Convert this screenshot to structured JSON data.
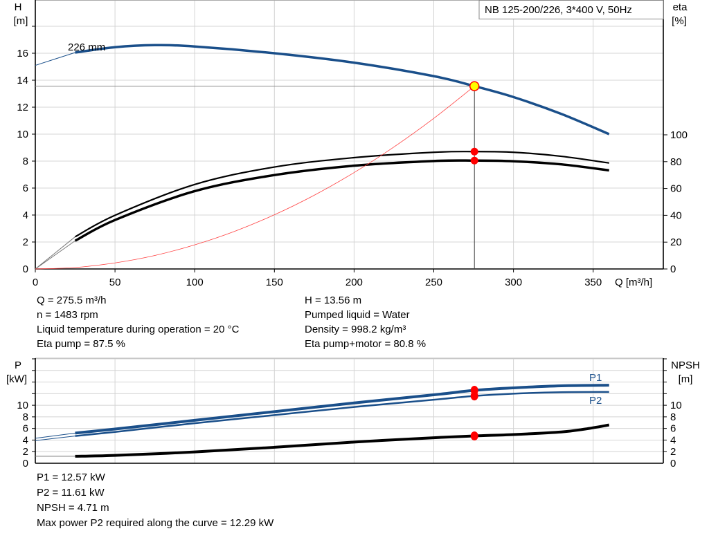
{
  "chart_data": [
    {
      "type": "line",
      "title": "NB 125-200/226, 3*400 V, 50Hz",
      "xlabel": "Q [m³/h]",
      "ylabel": "H\n[m]",
      "ylabel_lines": [
        "H",
        "[m]"
      ],
      "y2label_lines": [
        "eta",
        "[%]"
      ],
      "xlim": [
        0,
        394
      ],
      "ylim": [
        0,
        18
      ],
      "y2lim": [
        0,
        100
      ],
      "grid": true,
      "x_ticks": [
        0,
        50,
        100,
        150,
        200,
        250,
        300,
        350
      ],
      "y_ticks": [
        0,
        2,
        4,
        6,
        8,
        10,
        12,
        14,
        16
      ],
      "y2_ticks": [
        0,
        20,
        40,
        60,
        80,
        100
      ],
      "curve_label": "226 mm",
      "series": [
        {
          "key": "H",
          "axis": "left",
          "color": "#1a4f8a",
          "start_thick": 25,
          "points": [
            [
              0,
              15.1
            ],
            [
              25,
              16.05
            ],
            [
              50,
              16.45
            ],
            [
              75,
              16.6
            ],
            [
              100,
              16.5
            ],
            [
              150,
              16.0
            ],
            [
              200,
              15.3
            ],
            [
              250,
              14.3
            ],
            [
              275.5,
              13.56
            ],
            [
              300,
              12.75
            ],
            [
              330,
              11.5
            ],
            [
              360,
              10.0
            ]
          ]
        },
        {
          "key": "eta_pump",
          "axis": "right",
          "color": "#000000",
          "start_thick": 25,
          "points": [
            [
              0,
              0
            ],
            [
              25,
              24
            ],
            [
              50,
              40
            ],
            [
              100,
              63
            ],
            [
              150,
              76
            ],
            [
              200,
              83
            ],
            [
              250,
              87
            ],
            [
              275.5,
              87.5
            ],
            [
              300,
              87
            ],
            [
              330,
              84
            ],
            [
              360,
              79
            ]
          ]
        },
        {
          "key": "eta_pump_motor",
          "axis": "right",
          "color": "#000000",
          "start_thick": 25,
          "points": [
            [
              0,
              0
            ],
            [
              25,
              21
            ],
            [
              50,
              36.5
            ],
            [
              100,
              58
            ],
            [
              150,
              70
            ],
            [
              200,
              77
            ],
            [
              250,
              80.5
            ],
            [
              275.5,
              80.8
            ],
            [
              300,
              80.3
            ],
            [
              330,
              78
            ],
            [
              360,
              73.5
            ]
          ]
        },
        {
          "key": "system_curve",
          "axis": "left",
          "color": "#ff4040",
          "points": [
            [
              0,
              0
            ],
            [
              25,
              0.11
            ],
            [
              50,
              0.45
            ],
            [
              75,
              1.0
            ],
            [
              100,
              1.79
            ],
            [
              125,
              2.79
            ],
            [
              150,
              4.02
            ],
            [
              175,
              5.47
            ],
            [
              200,
              7.15
            ],
            [
              225,
              9.05
            ],
            [
              250,
              11.17
            ],
            [
              275.5,
              13.56
            ]
          ]
        }
      ],
      "duty_point": {
        "Q": 275.5,
        "H": 13.56,
        "eta_pump": 87.5,
        "eta_pump_motor": 80.8
      }
    },
    {
      "type": "line",
      "ylabel_lines": [
        "P",
        "[kW]"
      ],
      "y2label_lines": [
        "NPSH",
        "[m]"
      ],
      "xlim": [
        0,
        394
      ],
      "ylim": [
        0,
        18
      ],
      "grid": true,
      "y_ticks": [
        0,
        2,
        4,
        6,
        8,
        10
      ],
      "y2_ticks": [
        0,
        2,
        4,
        6,
        8,
        10
      ],
      "series": [
        {
          "name": "P1",
          "key": "P1",
          "color": "#1a4f8a",
          "start_thick": 25,
          "points": [
            [
              0,
              4.3
            ],
            [
              25,
              5.2
            ],
            [
              50,
              5.9
            ],
            [
              100,
              7.4
            ],
            [
              150,
              8.9
            ],
            [
              200,
              10.4
            ],
            [
              250,
              11.8
            ],
            [
              275.5,
              12.57
            ],
            [
              300,
              13.0
            ],
            [
              330,
              13.35
            ],
            [
              360,
              13.45
            ]
          ]
        },
        {
          "name": "P2",
          "key": "P2",
          "color": "#1a4f8a",
          "start_thick": 25,
          "points": [
            [
              0,
              3.9
            ],
            [
              25,
              4.7
            ],
            [
              50,
              5.4
            ],
            [
              100,
              6.9
            ],
            [
              150,
              8.3
            ],
            [
              200,
              9.7
            ],
            [
              250,
              10.95
            ],
            [
              275.5,
              11.61
            ],
            [
              300,
              12.0
            ],
            [
              330,
              12.25
            ],
            [
              360,
              12.3
            ]
          ]
        },
        {
          "name": "NPSH",
          "key": "NPSH",
          "color": "#000000",
          "start_thick": 25,
          "points": [
            [
              0,
              1.2
            ],
            [
              25,
              1.2
            ],
            [
              50,
              1.35
            ],
            [
              100,
              1.95
            ],
            [
              150,
              2.75
            ],
            [
              200,
              3.65
            ],
            [
              250,
              4.4
            ],
            [
              275.5,
              4.71
            ],
            [
              300,
              4.95
            ],
            [
              330,
              5.4
            ],
            [
              345,
              5.9
            ],
            [
              360,
              6.6
            ]
          ]
        }
      ],
      "duty_point": {
        "P1": 12.57,
        "P2": 11.61,
        "NPSH": 4.71
      }
    }
  ],
  "info_top_left": [
    "Q = 275.5 m³/h",
    "n = 1483 rpm",
    "Liquid temperature during operation = 20 °C",
    "Eta pump = 87.5 %"
  ],
  "info_top_right": [
    "H = 13.56 m",
    "Pumped liquid = Water",
    "Density = 998.2 kg/m³",
    "Eta pump+motor = 80.8 %"
  ],
  "info_bottom": [
    "P1 = 12.57 kW",
    "P2 = 11.61 kW",
    "NPSH = 4.71 m",
    "Max power P2 required along the curve = 12.29 kW"
  ],
  "colors": {
    "curve_blue": "#1a4f8a",
    "duty_marker": "#ff0000",
    "duty_point_fill": "#ffff00",
    "system_curve": "#ff4040"
  }
}
